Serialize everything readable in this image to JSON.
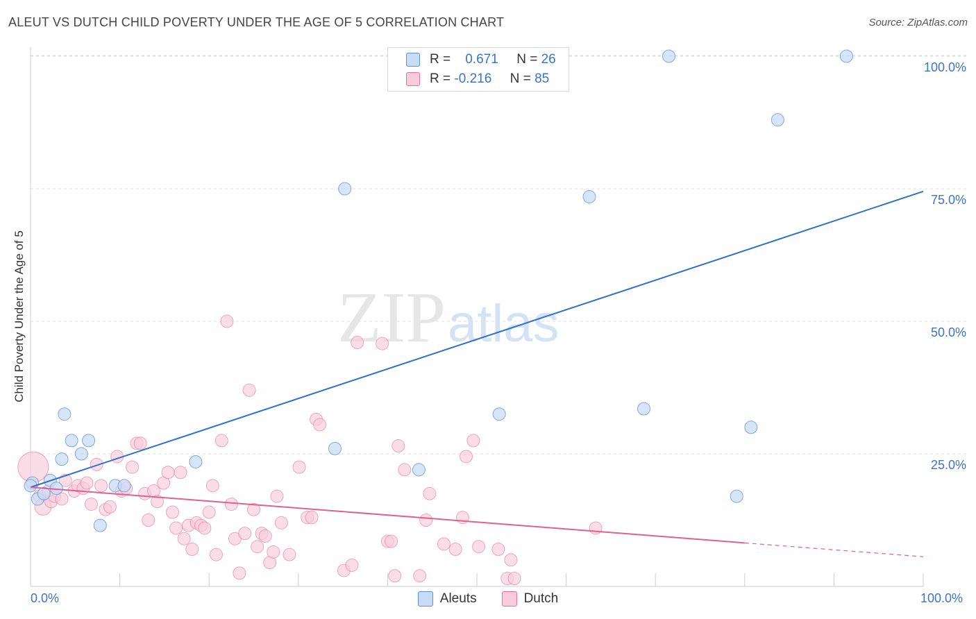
{
  "title": "ALEUT VS DUTCH CHILD POVERTY UNDER THE AGE OF 5 CORRELATION CHART",
  "source": "Source: ZipAtlas.com",
  "watermark": {
    "zip": "ZIP",
    "atlas": "atlas"
  },
  "legend": {
    "rows": [
      {
        "r_label": "R =",
        "r_value": "0.671",
        "n_label": "N =",
        "n_value": "26"
      },
      {
        "r_label": "R =",
        "r_value": "-0.216",
        "n_label": "N =",
        "n_value": "85"
      }
    ]
  },
  "chart_data": {
    "type": "scatter",
    "title": "ALEUT VS DUTCH CHILD POVERTY UNDER THE AGE OF 5 CORRELATION CHART",
    "xlabel": "",
    "ylabel": "Child Poverty Under the Age of 5",
    "xlim": [
      0,
      100
    ],
    "ylim": [
      0,
      105
    ],
    "x_tick_labels": [
      "0.0%",
      "100.0%"
    ],
    "y_ticks": [
      25,
      50,
      75,
      100
    ],
    "y_tick_labels": [
      "25.0%",
      "50.0%",
      "75.0%",
      "100.0%"
    ],
    "colors": {
      "aleuts": "#5b8fd6",
      "aleuts_fill": "#c9dcf5",
      "dutch": "#e8709a",
      "dutch_fill": "#f8ccda"
    },
    "series": [
      {
        "name": "Aleuts",
        "r": 0.671,
        "n": 26,
        "trend": {
          "x": [
            0,
            100
          ],
          "y": [
            18.7,
            74.5
          ]
        },
        "points": [
          [
            0.2,
            19.5
          ],
          [
            0.8,
            16.5
          ],
          [
            1.5,
            17.5
          ],
          [
            2.2,
            20.0
          ],
          [
            2.9,
            18.5
          ],
          [
            3.5,
            24.0
          ],
          [
            3.8,
            32.5
          ],
          [
            4.6,
            27.5
          ],
          [
            5.7,
            25.0
          ],
          [
            6.5,
            27.5
          ],
          [
            7.8,
            11.5
          ],
          [
            9.5,
            19.0
          ],
          [
            10.5,
            19.0
          ],
          [
            18.5,
            23.5
          ],
          [
            34.1,
            26.0
          ],
          [
            35.2,
            75.0
          ],
          [
            43.5,
            22.0
          ],
          [
            52.5,
            32.5
          ],
          [
            62.6,
            73.5
          ],
          [
            68.7,
            33.5
          ],
          [
            71.5,
            100.0
          ],
          [
            79.1,
            17.0
          ],
          [
            80.7,
            30.0
          ],
          [
            83.7,
            88.0
          ],
          [
            91.4,
            100.0
          ],
          [
            0.0,
            19.0
          ]
        ]
      },
      {
        "name": "Dutch",
        "r": -0.216,
        "n": 85,
        "trend": {
          "x": [
            0,
            80
          ],
          "y": [
            18.7,
            8.2
          ]
        },
        "trend_dashed": {
          "x": [
            80,
            100
          ],
          "y": [
            8.2,
            5.6
          ]
        },
        "points": [
          [
            0.3,
            22.5
          ],
          [
            1.0,
            17.0
          ],
          [
            1.4,
            15.0
          ],
          [
            2.0,
            18.0
          ],
          [
            2.3,
            16.0
          ],
          [
            2.7,
            17.0
          ],
          [
            3.5,
            16.5
          ],
          [
            3.9,
            20.0
          ],
          [
            4.9,
            18.0
          ],
          [
            5.3,
            19.0
          ],
          [
            5.9,
            18.5
          ],
          [
            6.3,
            19.5
          ],
          [
            6.8,
            15.5
          ],
          [
            7.4,
            23.0
          ],
          [
            7.9,
            19.0
          ],
          [
            8.4,
            14.5
          ],
          [
            8.9,
            15.0
          ],
          [
            9.7,
            24.5
          ],
          [
            10.2,
            18.0
          ],
          [
            10.7,
            18.5
          ],
          [
            11.4,
            22.5
          ],
          [
            11.9,
            27.0
          ],
          [
            12.3,
            27.0
          ],
          [
            12.8,
            17.5
          ],
          [
            13.2,
            12.5
          ],
          [
            13.8,
            18.0
          ],
          [
            14.2,
            16.0
          ],
          [
            14.9,
            19.5
          ],
          [
            15.4,
            21.5
          ],
          [
            15.9,
            14.0
          ],
          [
            16.3,
            11.0
          ],
          [
            16.8,
            21.5
          ],
          [
            17.2,
            9.0
          ],
          [
            17.7,
            11.5
          ],
          [
            18.1,
            7.0
          ],
          [
            18.6,
            12.0
          ],
          [
            19.1,
            11.5
          ],
          [
            19.5,
            11.0
          ],
          [
            20.0,
            14.0
          ],
          [
            20.4,
            19.0
          ],
          [
            20.8,
            6.0
          ],
          [
            21.4,
            27.5
          ],
          [
            22.0,
            50.0
          ],
          [
            22.5,
            15.5
          ],
          [
            22.9,
            9.0
          ],
          [
            23.4,
            2.5
          ],
          [
            24.0,
            10.0
          ],
          [
            24.5,
            37.0
          ],
          [
            25.0,
            14.5
          ],
          [
            25.4,
            7.5
          ],
          [
            25.9,
            10.0
          ],
          [
            26.3,
            9.5
          ],
          [
            26.8,
            4.5
          ],
          [
            27.2,
            6.5
          ],
          [
            27.6,
            17.0
          ],
          [
            28.1,
            12.0
          ],
          [
            29.0,
            6.0
          ],
          [
            30.1,
            22.5
          ],
          [
            31.0,
            13.0
          ],
          [
            31.5,
            13.0
          ],
          [
            32.0,
            31.5
          ],
          [
            32.4,
            30.5
          ],
          [
            35.1,
            3.0
          ],
          [
            36.0,
            4.0
          ],
          [
            36.6,
            46.0
          ],
          [
            39.4,
            45.8
          ],
          [
            40.0,
            8.5
          ],
          [
            40.4,
            8.5
          ],
          [
            40.8,
            2.0
          ],
          [
            41.2,
            26.5
          ],
          [
            41.9,
            22.0
          ],
          [
            43.6,
            2.0
          ],
          [
            44.3,
            12.5
          ],
          [
            44.7,
            17.5
          ],
          [
            46.3,
            8.0
          ],
          [
            47.6,
            7.0
          ],
          [
            48.4,
            13.0
          ],
          [
            48.8,
            24.5
          ],
          [
            49.6,
            27.5
          ],
          [
            50.2,
            7.5
          ],
          [
            52.4,
            7.0
          ],
          [
            53.4,
            1.5
          ],
          [
            53.8,
            5.0
          ],
          [
            54.2,
            1.5
          ],
          [
            63.3,
            11.0
          ]
        ]
      }
    ]
  }
}
